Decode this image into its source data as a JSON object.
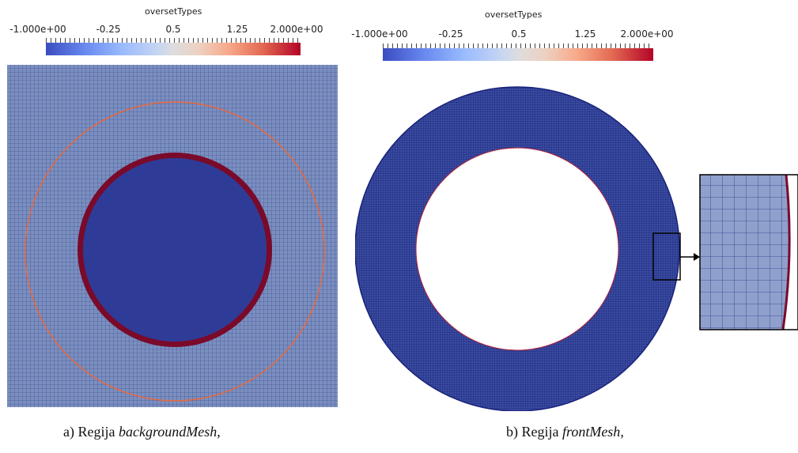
{
  "panel_a": {
    "colorbar": {
      "title": "oversetTypes",
      "tick_labels": [
        "-1.000e+00",
        "-0.25",
        "0.5",
        "1.25",
        "2.000e+00"
      ]
    },
    "caption": {
      "prefix": "a) Regija ",
      "name": "backgroundMesh",
      "suffix": ","
    }
  },
  "panel_b": {
    "colorbar": {
      "title": "oversetTypes",
      "tick_labels": [
        "-1.000e+00",
        "-0.25",
        "0.5",
        "1.25",
        "2.000e+00"
      ]
    },
    "caption": {
      "prefix": "b) Regija ",
      "name": "frontMesh",
      "suffix": ","
    }
  },
  "colors": {
    "hole_cell": "#2e3c98",
    "background_cell": "#7b8fbf",
    "boundary_cell": "#7a0a2a",
    "mesh_line": "#1e2a7a",
    "orange_circle": "#e8683c",
    "colormap_low": "#3b4cc0",
    "colormap_mid": "#dddddd",
    "colormap_high": "#b40426"
  }
}
